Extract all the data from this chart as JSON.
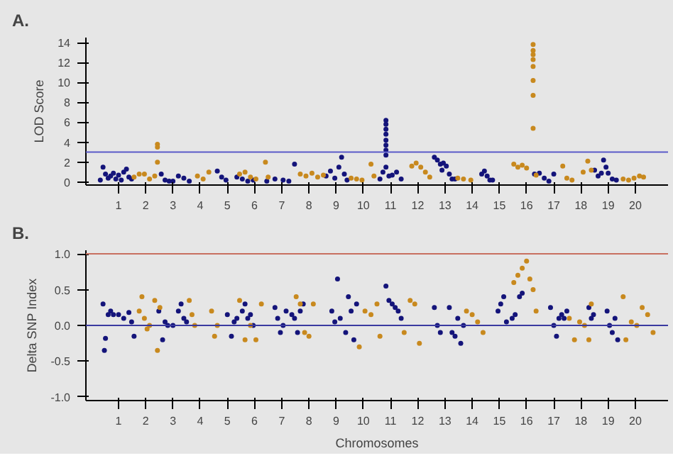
{
  "chart_data": [
    {
      "type": "scatter",
      "title": "A.",
      "ylabel": "LOD Score",
      "marker": "circle",
      "xlim": [
        -0.2,
        21.2
      ],
      "xticks": [
        1,
        2,
        3,
        4,
        5,
        6,
        7,
        8,
        9,
        10,
        11,
        12,
        13,
        14,
        15,
        16,
        17,
        18,
        19,
        20
      ],
      "ylim": [
        -0.3,
        14.5
      ],
      "yticks": [
        0,
        2,
        4,
        6,
        8,
        10,
        12,
        14
      ],
      "ref_lines": [
        {
          "axis": "y",
          "value": 3,
          "color": "#5a5ac8"
        }
      ],
      "series": [
        {
          "color": "#14147a",
          "x": [
            0.33,
            0.43,
            0.52,
            0.62,
            0.71,
            0.81,
            0.9,
            1.0,
            1.1,
            1.19,
            1.29,
            1.38,
            1.48,
            2.57,
            2.71,
            2.86,
            3.0,
            3.2,
            3.4,
            3.6,
            4.63,
            4.79,
            4.95,
            5.35,
            5.55,
            5.75,
            5.95,
            6.45,
            6.75,
            7.05,
            7.26,
            7.47,
            8.63,
            8.79,
            8.95,
            9.1,
            9.2,
            9.3,
            9.4,
            10.61,
            10.72,
            10.83,
            10.83,
            10.83,
            10.83,
            10.83,
            10.83,
            10.83,
            10.83,
            10.83,
            10.94,
            11.06,
            11.22,
            11.39,
            12.61,
            12.72,
            12.83,
            12.89,
            12.94,
            13.05,
            13.16,
            13.26,
            13.37,
            14.35,
            14.45,
            14.55,
            14.65,
            14.75,
            16.29,
            16.47,
            16.65,
            16.82,
            17.0,
            18.5,
            18.63,
            18.75,
            18.83,
            18.92,
            19.0,
            19.15,
            19.3
          ],
          "values": [
            0.2,
            1.5,
            0.8,
            0.4,
            0.6,
            0.9,
            0.3,
            0.7,
            0.2,
            1.0,
            1.3,
            0.5,
            0.3,
            0.8,
            0.2,
            0.1,
            0.1,
            0.6,
            0.4,
            0.1,
            1.1,
            0.5,
            0.2,
            0.5,
            0.3,
            0.1,
            0.2,
            0.1,
            0.3,
            0.2,
            0.1,
            1.8,
            0.6,
            1.1,
            0.4,
            1.5,
            2.5,
            0.8,
            0.2,
            0.3,
            1.0,
            6.2,
            5.8,
            5.3,
            4.8,
            4.2,
            3.7,
            3.2,
            2.7,
            1.5,
            0.6,
            0.7,
            1.0,
            0.3,
            2.5,
            2.2,
            1.8,
            1.2,
            1.9,
            1.6,
            0.8,
            0.3,
            0.3,
            0.8,
            1.1,
            0.6,
            0.2,
            0.2,
            0.8,
            0.9,
            0.4,
            0.1,
            0.8,
            1.2,
            0.6,
            0.9,
            2.2,
            1.5,
            0.9,
            0.3,
            0.2
          ]
        },
        {
          "color": "#c8891e",
          "x": [
            1.57,
            1.76,
            1.95,
            2.14,
            2.33,
            2.43,
            2.43,
            2.43,
            3.9,
            4.11,
            4.32,
            5.45,
            5.65,
            5.85,
            6.05,
            6.4,
            6.5,
            7.68,
            7.89,
            8.11,
            8.32,
            8.53,
            9.55,
            9.75,
            9.95,
            10.28,
            10.39,
            11.78,
            11.94,
            12.11,
            12.28,
            12.44,
            13.47,
            13.68,
            13.95,
            15.53,
            15.68,
            15.84,
            16.0,
            16.24,
            16.24,
            16.24,
            16.24,
            16.24,
            16.24,
            16.24,
            16.24,
            16.35,
            17.33,
            17.48,
            17.67,
            18.08,
            18.25,
            18.38,
            19.55,
            19.75,
            19.95,
            20.15,
            20.3
          ],
          "values": [
            0.5,
            0.8,
            0.8,
            0.3,
            0.6,
            3.8,
            3.5,
            2.0,
            0.6,
            0.3,
            1.0,
            0.8,
            1.0,
            0.5,
            0.3,
            2.0,
            0.5,
            0.8,
            0.6,
            0.9,
            0.5,
            0.7,
            0.4,
            0.3,
            0.2,
            1.8,
            0.6,
            1.6,
            1.9,
            1.5,
            1.0,
            0.5,
            0.4,
            0.3,
            0.2,
            1.8,
            1.5,
            1.7,
            1.4,
            13.8,
            13.2,
            12.8,
            12.3,
            11.6,
            10.2,
            8.7,
            5.4,
            0.7,
            1.6,
            0.4,
            0.2,
            1.0,
            2.1,
            1.2,
            0.3,
            0.2,
            0.4,
            0.6,
            0.5
          ]
        }
      ]
    },
    {
      "type": "scatter",
      "title": "B.",
      "xlabel": "Chromosomes",
      "ylabel": "Delta SNP Index",
      "marker": "circle",
      "xlim": [
        -0.2,
        21.2
      ],
      "xticks": [
        1,
        2,
        3,
        4,
        5,
        6,
        7,
        8,
        9,
        10,
        11,
        12,
        13,
        14,
        15,
        16,
        17,
        18,
        19,
        20
      ],
      "ylim": [
        -1.05,
        1.05
      ],
      "yticks": [
        {
          "value": -1,
          "label": "-1.0"
        },
        {
          "value": -0.5,
          "label": "-0.5"
        },
        {
          "value": 0,
          "label": "0.0"
        },
        {
          "value": 0.5,
          "label": "0.5"
        },
        {
          "value": 1,
          "label": "1.0"
        }
      ],
      "ref_lines": [
        {
          "axis": "y",
          "value": 0,
          "color": "#3a3aa0"
        },
        {
          "axis": "y",
          "value": 1,
          "color": "#c87060"
        }
      ],
      "series": [
        {
          "color": "#14147a",
          "x": [
            0.43,
            0.48,
            0.52,
            0.62,
            0.71,
            0.81,
            1.0,
            1.19,
            1.38,
            1.48,
            1.57,
            2.48,
            2.62,
            2.71,
            2.81,
            3.0,
            3.2,
            3.3,
            3.4,
            3.5,
            5.0,
            5.15,
            5.25,
            5.35,
            5.55,
            5.65,
            5.75,
            5.85,
            5.95,
            6.75,
            6.85,
            6.95,
            7.05,
            7.16,
            7.37,
            7.47,
            7.58,
            7.68,
            7.79,
            8.84,
            8.95,
            9.05,
            9.15,
            9.35,
            9.45,
            9.55,
            9.65,
            9.75,
            10.83,
            10.94,
            11.06,
            11.17,
            11.28,
            11.39,
            12.61,
            12.72,
            12.83,
            13.16,
            13.26,
            13.37,
            13.47,
            13.58,
            13.68,
            14.95,
            15.05,
            15.16,
            15.26,
            15.47,
            15.58,
            15.74,
            15.84,
            16.88,
            17.0,
            17.1,
            17.19,
            17.29,
            17.38,
            17.48,
            18.29,
            18.38,
            18.46,
            18.96,
            19.05,
            19.15,
            19.25,
            19.35
          ],
          "values": [
            0.3,
            -0.35,
            -0.18,
            0.15,
            0.2,
            0.15,
            0.15,
            0.1,
            0.18,
            0.05,
            -0.15,
            0.2,
            -0.2,
            0.05,
            0.0,
            0.0,
            0.2,
            0.3,
            0.1,
            0.05,
            0.15,
            -0.15,
            0.05,
            0.1,
            0.2,
            0.3,
            0.1,
            0.15,
            0.0,
            0.25,
            0.1,
            -0.1,
            0.0,
            0.2,
            0.15,
            0.1,
            -0.1,
            0.2,
            0.3,
            0.2,
            0.05,
            0.65,
            0.1,
            -0.1,
            0.4,
            0.2,
            -0.2,
            0.3,
            0.55,
            0.35,
            0.3,
            0.25,
            0.2,
            0.1,
            0.25,
            0.0,
            -0.1,
            0.25,
            -0.1,
            -0.15,
            0.1,
            -0.25,
            0.0,
            0.2,
            0.3,
            0.4,
            0.05,
            0.1,
            0.15,
            0.4,
            0.45,
            0.25,
            0.0,
            -0.15,
            0.1,
            0.15,
            0.1,
            0.2,
            0.25,
            0.1,
            0.15,
            0.2,
            0.0,
            -0.1,
            0.1,
            -0.2
          ]
        },
        {
          "color": "#c8891e",
          "x": [
            1.76,
            1.86,
            1.95,
            2.05,
            2.14,
            2.33,
            2.43,
            2.52,
            3.6,
            3.7,
            3.8,
            4.42,
            4.53,
            4.63,
            5.45,
            5.65,
            5.85,
            6.05,
            6.25,
            7.53,
            7.68,
            7.84,
            8.0,
            8.16,
            9.85,
            10.06,
            10.28,
            10.5,
            10.61,
            11.5,
            11.72,
            11.89,
            12.06,
            13.79,
            14.0,
            14.2,
            14.4,
            15.53,
            15.68,
            15.84,
            16.0,
            16.12,
            16.24,
            16.35,
            17.57,
            17.76,
            17.95,
            18.13,
            18.29,
            18.38,
            19.55,
            19.65,
            19.85,
            20.05,
            20.25,
            20.45,
            20.65
          ],
          "values": [
            0.2,
            0.4,
            0.1,
            -0.05,
            0.0,
            0.35,
            -0.35,
            0.25,
            0.35,
            0.15,
            0.0,
            0.2,
            -0.15,
            0.0,
            0.35,
            -0.2,
            0.0,
            -0.2,
            0.3,
            0.4,
            0.3,
            -0.1,
            -0.15,
            0.3,
            -0.3,
            0.2,
            0.15,
            0.3,
            -0.15,
            -0.1,
            0.35,
            0.3,
            -0.25,
            0.2,
            0.15,
            0.05,
            -0.1,
            0.6,
            0.7,
            0.8,
            0.9,
            0.65,
            0.5,
            0.2,
            0.1,
            -0.2,
            0.05,
            0.0,
            -0.2,
            0.3,
            0.4,
            -0.2,
            0.05,
            0.0,
            0.25,
            0.15,
            -0.1
          ]
        }
      ]
    }
  ]
}
